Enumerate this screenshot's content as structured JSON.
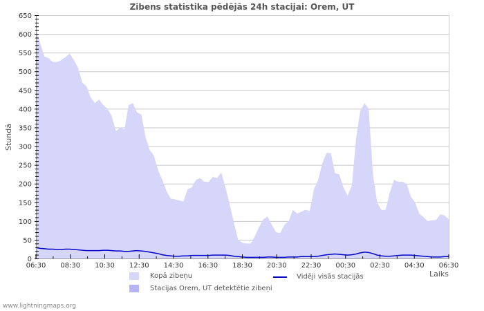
{
  "header": {
    "title": "Zibens statistika pēdējās 24h stacijai: Orem, UT"
  },
  "footer": {
    "text": "www.lightningmaps.org"
  },
  "colors": {
    "total_fill": "#d6d6fb",
    "station_fill": "#b4b4f6",
    "average_line": "#0000c8",
    "grid": "#c8c8c8",
    "axis": "#999999"
  },
  "legend": {
    "total": "Kopā zibeņu",
    "station": "Stacijas Orem, UT detektētie zibeņi",
    "average": "Vidēji visās stacijās"
  },
  "chart_data": {
    "type": "area",
    "title": "Zibens statistika pēdējās 24h stacijai: Orem, UT",
    "xlabel": "Laiks",
    "ylabel": "Stundā",
    "ylim": [
      0,
      650
    ],
    "yticks": [
      0,
      50,
      100,
      150,
      200,
      250,
      300,
      350,
      400,
      450,
      500,
      550,
      600,
      650
    ],
    "xticks": [
      "06:30",
      "08:30",
      "10:30",
      "12:30",
      "14:30",
      "16:30",
      "18:30",
      "20:30",
      "22:30",
      "00:30",
      "02:30",
      "04:30",
      "06:30"
    ],
    "x_interval_minutes": 15,
    "grid": true,
    "legend_position": "bottom",
    "series": [
      {
        "name": "Kopā zibeņu",
        "type": "area",
        "values": [
          615,
          575,
          540,
          535,
          525,
          525,
          530,
          538,
          548,
          530,
          510,
          470,
          460,
          430,
          415,
          425,
          410,
          400,
          380,
          340,
          350,
          345,
          410,
          415,
          390,
          385,
          325,
          290,
          275,
          235,
          210,
          180,
          160,
          158,
          155,
          152,
          185,
          190,
          210,
          215,
          205,
          205,
          218,
          215,
          230,
          190,
          145,
          95,
          50,
          42,
          40,
          40,
          60,
          85,
          105,
          112,
          90,
          70,
          68,
          90,
          100,
          130,
          120,
          125,
          130,
          127,
          185,
          210,
          255,
          282,
          282,
          228,
          225,
          190,
          168,
          195,
          320,
          395,
          415,
          400,
          225,
          150,
          130,
          130,
          175,
          210,
          205,
          205,
          200,
          165,
          150,
          120,
          110,
          100,
          102,
          103,
          118,
          115,
          105
        ]
      },
      {
        "name": "Stacijas Orem, UT detektētie zibeņi",
        "type": "area",
        "values": []
      },
      {
        "name": "Vidēji visās stacijās",
        "type": "line",
        "values": [
          29,
          27,
          26,
          25,
          25,
          24,
          24,
          25,
          25,
          24,
          23,
          22,
          21,
          21,
          21,
          21,
          22,
          22,
          21,
          20,
          20,
          19,
          19,
          20,
          21,
          20,
          19,
          17,
          15,
          13,
          10,
          8,
          7,
          6,
          6,
          7,
          7,
          8,
          8,
          8,
          8,
          8,
          9,
          9,
          9,
          9,
          8,
          6,
          5,
          4,
          3,
          3,
          3,
          3,
          3,
          4,
          4,
          3,
          3,
          3,
          4,
          4,
          4,
          5,
          5,
          5,
          5,
          6,
          8,
          10,
          11,
          12,
          11,
          10,
          9,
          10,
          12,
          15,
          17,
          16,
          13,
          9,
          7,
          6,
          6,
          7,
          8,
          9,
          9,
          9,
          8,
          7,
          6,
          5,
          4,
          4,
          4,
          5,
          5
        ]
      }
    ]
  }
}
